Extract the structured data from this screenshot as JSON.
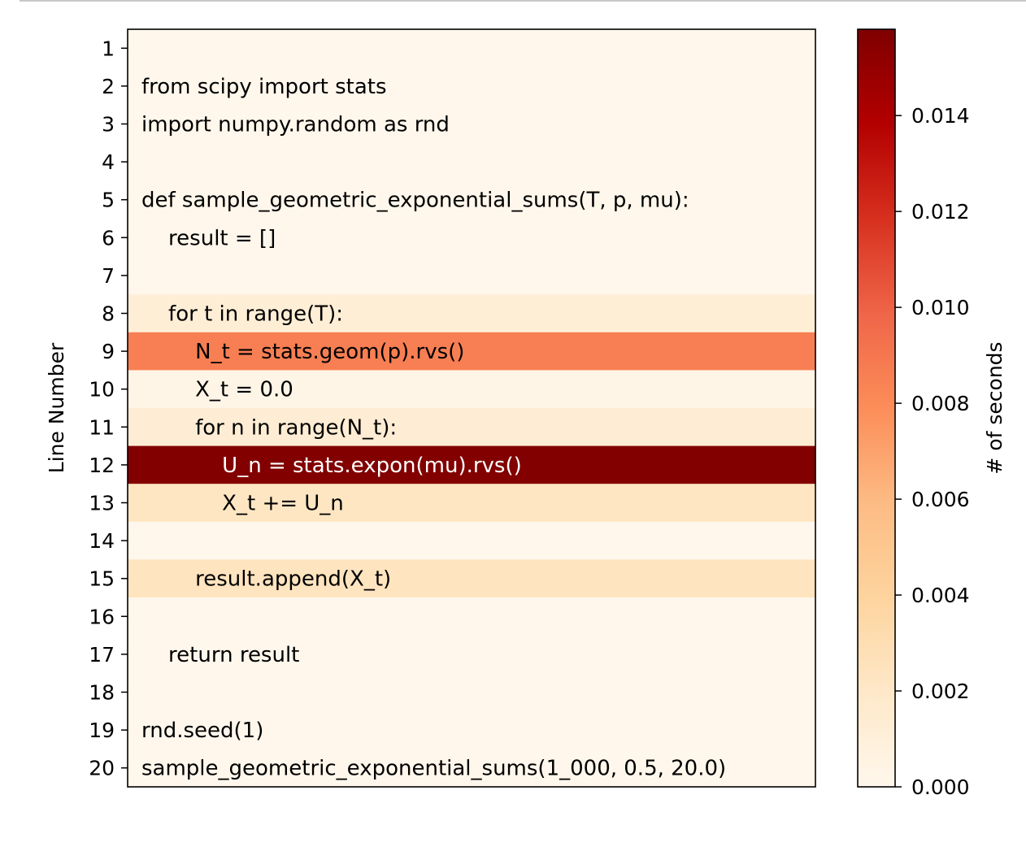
{
  "chart_data": {
    "type": "heatmap",
    "ylabel": "Line Number",
    "colorbar_label": "# of seconds",
    "colormap": "OrRd",
    "vmin": 0.0,
    "vmax": 0.0158,
    "colorbar_ticks": [
      "0.000",
      "0.002",
      "0.004",
      "0.006",
      "0.008",
      "0.010",
      "0.012",
      "0.014"
    ],
    "colorbar_tick_values": [
      0.0,
      0.002,
      0.004,
      0.006,
      0.008,
      0.01,
      0.012,
      0.014
    ],
    "rows": [
      {
        "line": 1,
        "code": "",
        "seconds": 0.0
      },
      {
        "line": 2,
        "code": "from scipy import stats",
        "seconds": 0.0
      },
      {
        "line": 3,
        "code": "import numpy.random as rnd",
        "seconds": 0.0
      },
      {
        "line": 4,
        "code": "",
        "seconds": 0.0
      },
      {
        "line": 5,
        "code": "def sample_geometric_exponential_sums(T, p, mu):",
        "seconds": 0.0
      },
      {
        "line": 6,
        "code": "    result = []",
        "seconds": 0.0
      },
      {
        "line": 7,
        "code": "",
        "seconds": 0.0
      },
      {
        "line": 8,
        "code": "    for t in range(T):",
        "seconds": 0.0012
      },
      {
        "line": 9,
        "code": "        N_t = stats.geom(p).rvs()",
        "seconds": 0.0086
      },
      {
        "line": 10,
        "code": "        X_t = 0.0",
        "seconds": 0.0003
      },
      {
        "line": 11,
        "code": "        for n in range(N_t):",
        "seconds": 0.0013
      },
      {
        "line": 12,
        "code": "            U_n = stats.expon(mu).rvs()",
        "seconds": 0.0157
      },
      {
        "line": 13,
        "code": "            X_t += U_n",
        "seconds": 0.0022
      },
      {
        "line": 14,
        "code": "",
        "seconds": 0.0
      },
      {
        "line": 15,
        "code": "        result.append(X_t)",
        "seconds": 0.0024
      },
      {
        "line": 16,
        "code": "",
        "seconds": 0.0
      },
      {
        "line": 17,
        "code": "    return result",
        "seconds": 0.0
      },
      {
        "line": 18,
        "code": "",
        "seconds": 0.0
      },
      {
        "line": 19,
        "code": "rnd.seed(1)",
        "seconds": 0.0
      },
      {
        "line": 20,
        "code": "sample_geometric_exponential_sums(1_000, 0.5, 20.0)",
        "seconds": 0.0
      }
    ]
  }
}
